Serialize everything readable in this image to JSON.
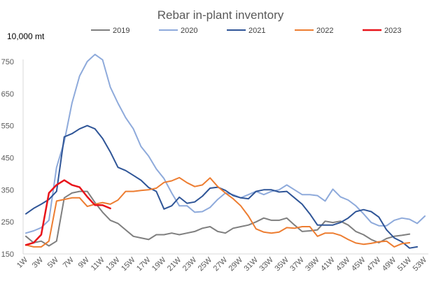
{
  "chart_data": {
    "type": "line",
    "title": "Rebar in-plant inventory",
    "ylabel": "10,000 mt",
    "xlabel": "",
    "ylim": [
      150,
      800
    ],
    "yticks": [
      150,
      250,
      350,
      450,
      550,
      650,
      750
    ],
    "xlim": [
      1,
      53
    ],
    "xtick_labels": [
      "1W",
      "3W",
      "5W",
      "7W",
      "9W",
      "11W",
      "13W",
      "15W",
      "17W",
      "19W",
      "21W",
      "23W",
      "25W",
      "27W",
      "29W",
      "31W",
      "33W",
      "35W",
      "37W",
      "39W",
      "41W",
      "43W",
      "45W",
      "47W",
      "49W",
      "51W",
      "53W"
    ],
    "legend_position": "top",
    "grid": false,
    "series": [
      {
        "name": "2019",
        "color": "#7f7f7f",
        "values": [
          205,
          185,
          190,
          175,
          190,
          325,
          340,
          345,
          345,
          310,
          280,
          255,
          245,
          225,
          205,
          200,
          195,
          210,
          210,
          215,
          210,
          215,
          220,
          230,
          235,
          220,
          215,
          230,
          235,
          240,
          250,
          262,
          255,
          255,
          262,
          240,
          220,
          222,
          225,
          252,
          248,
          252,
          240,
          220,
          210,
          195,
          185,
          198,
          205,
          208,
          212
        ]
      },
      {
        "name": "2020",
        "color": "#8eaadb",
        "values": [
          215,
          222,
          232,
          255,
          420,
          500,
          620,
          705,
          750,
          772,
          755,
          670,
          620,
          575,
          540,
          485,
          455,
          415,
          385,
          340,
          300,
          300,
          280,
          282,
          295,
          320,
          340,
          335,
          325,
          335,
          345,
          335,
          345,
          350,
          365,
          350,
          335,
          335,
          332,
          315,
          352,
          328,
          318,
          300,
          275,
          248,
          238,
          238,
          255,
          262,
          258,
          245,
          268
        ]
      },
      {
        "name": "2021",
        "color": "#2f5597",
        "values": [
          275,
          292,
          305,
          320,
          345,
          515,
          525,
          540,
          550,
          540,
          510,
          468,
          420,
          410,
          395,
          380,
          357,
          345,
          290,
          300,
          327,
          308,
          312,
          330,
          355,
          358,
          348,
          332,
          325,
          322,
          345,
          350,
          350,
          343,
          345,
          325,
          305,
          275,
          240,
          240,
          240,
          248,
          262,
          282,
          288,
          282,
          265,
          225,
          200,
          188,
          168,
          172
        ]
      },
      {
        "name": "2022",
        "color": "#ed7d31",
        "values": [
          178,
          172,
          172,
          190,
          315,
          320,
          325,
          325,
          298,
          305,
          310,
          305,
          318,
          345,
          345,
          348,
          350,
          355,
          373,
          378,
          388,
          372,
          360,
          365,
          387,
          360,
          340,
          322,
          300,
          268,
          228,
          218,
          215,
          218,
          232,
          230,
          235,
          235,
          205,
          215,
          215,
          208,
          195,
          184,
          180,
          183,
          188,
          190,
          172,
          182,
          185
        ]
      },
      {
        "name": "2023",
        "color": "#e8141b",
        "values": [
          178,
          185,
          210,
          340,
          365,
          380,
          365,
          358,
          328,
          302,
          302,
          292
        ]
      }
    ]
  }
}
